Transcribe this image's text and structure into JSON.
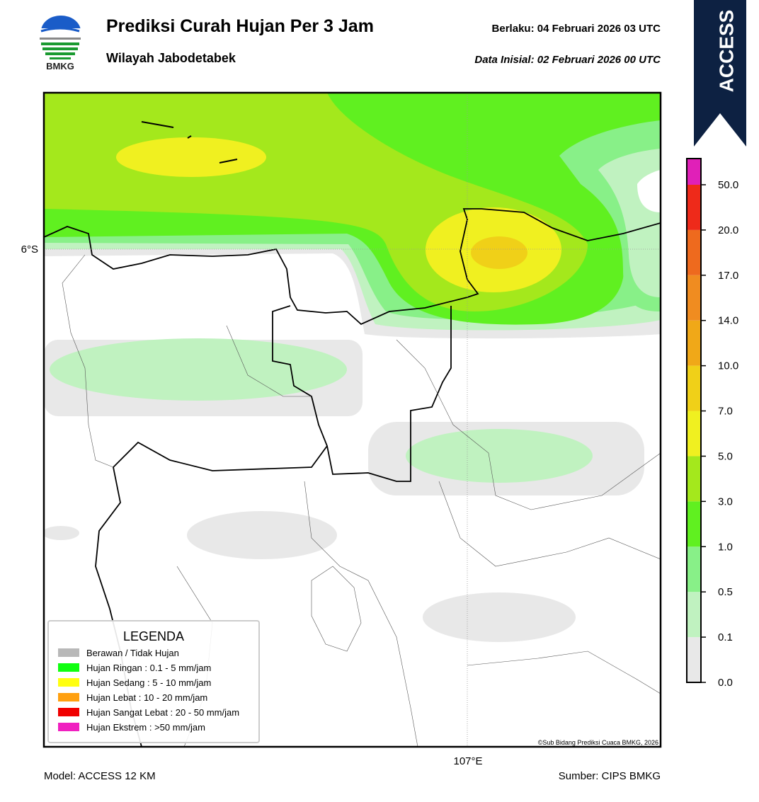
{
  "header": {
    "logo_text": "BMKG",
    "title": "Prediksi Curah Hujan Per 3 Jam",
    "subtitle": "Wilayah Jabodetabek",
    "valid": "Berlaku:  04 Februari 2026 03 UTC",
    "init": "Data Inisial:  02 Februari 2026 00 UTC"
  },
  "badge": "ACCESS",
  "map": {
    "lat_label": "6°S",
    "lon_label": "107°E",
    "credit": "©Sub Bidang Prediksi Cuaca BMKG, 2026"
  },
  "colorbar": {
    "ticks": [
      "0.0",
      "0.1",
      "0.5",
      "1.0",
      "3.0",
      "5.0",
      "7.0",
      "10.0",
      "14.0",
      "17.0",
      "20.0",
      "50.0"
    ],
    "colors": [
      "#e8e8e8",
      "#c0f2c0",
      "#88f088",
      "#60f020",
      "#a4e81c",
      "#f0f020",
      "#f0d018",
      "#f0a818",
      "#f08c20",
      "#ee6a1e",
      "#ee2a1a",
      "#e020b8"
    ]
  },
  "legend": {
    "title": "LEGENDA",
    "items": [
      {
        "label": "Berawan / Tidak Hujan",
        "color": "#b8b8b8"
      },
      {
        "label": "Hujan Ringan : 0.1 - 5 mm/jam",
        "color": "#10ff10"
      },
      {
        "label": "Hujan Sedang : 5 - 10 mm/jam",
        "color": "#ffff10"
      },
      {
        "label": "Hujan Lebat : 10 - 20 mm/jam",
        "color": "#ffa010"
      },
      {
        "label": "Hujan Sangat Lebat : 20 - 50 mm/jam",
        "color": "#f00000"
      },
      {
        "label": "Hujan Ekstrem : >50 mm/jam",
        "color": "#f020c0"
      }
    ]
  },
  "footer": {
    "model": "Model: ACCESS 12 KM",
    "source": "Sumber: CIPS BMKG"
  }
}
